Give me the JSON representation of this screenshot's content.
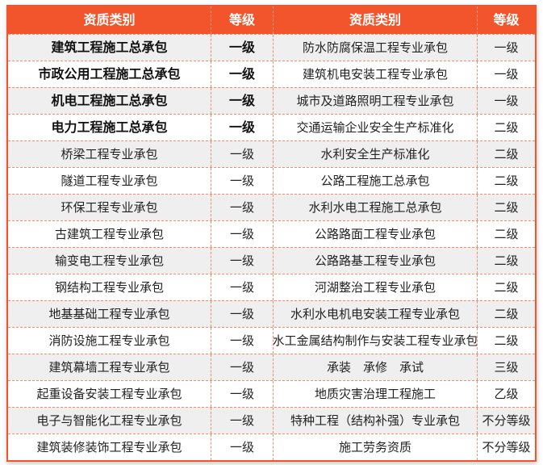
{
  "table": {
    "headers": [
      "资质类别",
      "等级",
      "资质类别",
      "等级"
    ],
    "rows": [
      {
        "c1": "建筑工程施工总承包",
        "c2": "一级",
        "c3": "防水防腐保温工程专业承包",
        "c4": "一级"
      },
      {
        "c1": "市政公用工程施工总承包",
        "c2": "一级",
        "c3": "建筑机电安装工程专业承包",
        "c4": "一级"
      },
      {
        "c1": "机电工程施工总承包",
        "c2": "一级",
        "c3": "城市及道路照明工程专业承包",
        "c4": "一级"
      },
      {
        "c1": "电力工程施工总承包",
        "c2": "一级",
        "c3": "交通运输企业安全生产标准化",
        "c4": "二级"
      },
      {
        "c1": "桥梁工程专业承包",
        "c2": "一级",
        "c3": "水利安全生产标准化",
        "c4": "二级"
      },
      {
        "c1": "隧道工程专业承包",
        "c2": "一级",
        "c3": "公路工程施工总承包",
        "c4": "二级"
      },
      {
        "c1": "环保工程专业承包",
        "c2": "一级",
        "c3": "水利水电工程施工总承包",
        "c4": "二级"
      },
      {
        "c1": "古建筑工程专业承包",
        "c2": "一级",
        "c3": "公路路面工程专业承包",
        "c4": "二级"
      },
      {
        "c1": "输变电工程专业承包",
        "c2": "一级",
        "c3": "公路路基工程专业承包",
        "c4": "二级"
      },
      {
        "c1": "钢结构工程专业承包",
        "c2": "一级",
        "c3": "河湖整治工程专业承包",
        "c4": "二级"
      },
      {
        "c1": "地基基础工程专业承包",
        "c2": "一级",
        "c3": "水利水电机电安装工程专业承包",
        "c4": "二级"
      },
      {
        "c1": "消防设施工程专业承包",
        "c2": "一级",
        "c3": "水工金属结构制作与安装工程专业承包",
        "c4": "二级"
      },
      {
        "c1": "建筑幕墙工程专业承包",
        "c2": "一级",
        "c3": "承装　承修　承试",
        "c4": "三级"
      },
      {
        "c1": "起重设备安装工程专业承包",
        "c2": "一级",
        "c3": "地质灾害治理工程施工",
        "c4": "乙级"
      },
      {
        "c1": "电子与智能化工程专业承包",
        "c2": "一级",
        "c3": "特种工程（结构补强）专业承包",
        "c4": "不分等级"
      },
      {
        "c1": "建筑装修装饰工程专业承包",
        "c2": "一级",
        "c3": "施工劳务资质",
        "c4": "不分等级"
      }
    ],
    "colors": {
      "header_bg": "#F2552C",
      "outer_border": "#F2552C",
      "dashed_border": "#F0906A",
      "alt_row_bg": "#EFEFEF",
      "header_text": "#FFFFFF",
      "body_text": "#222222"
    }
  }
}
